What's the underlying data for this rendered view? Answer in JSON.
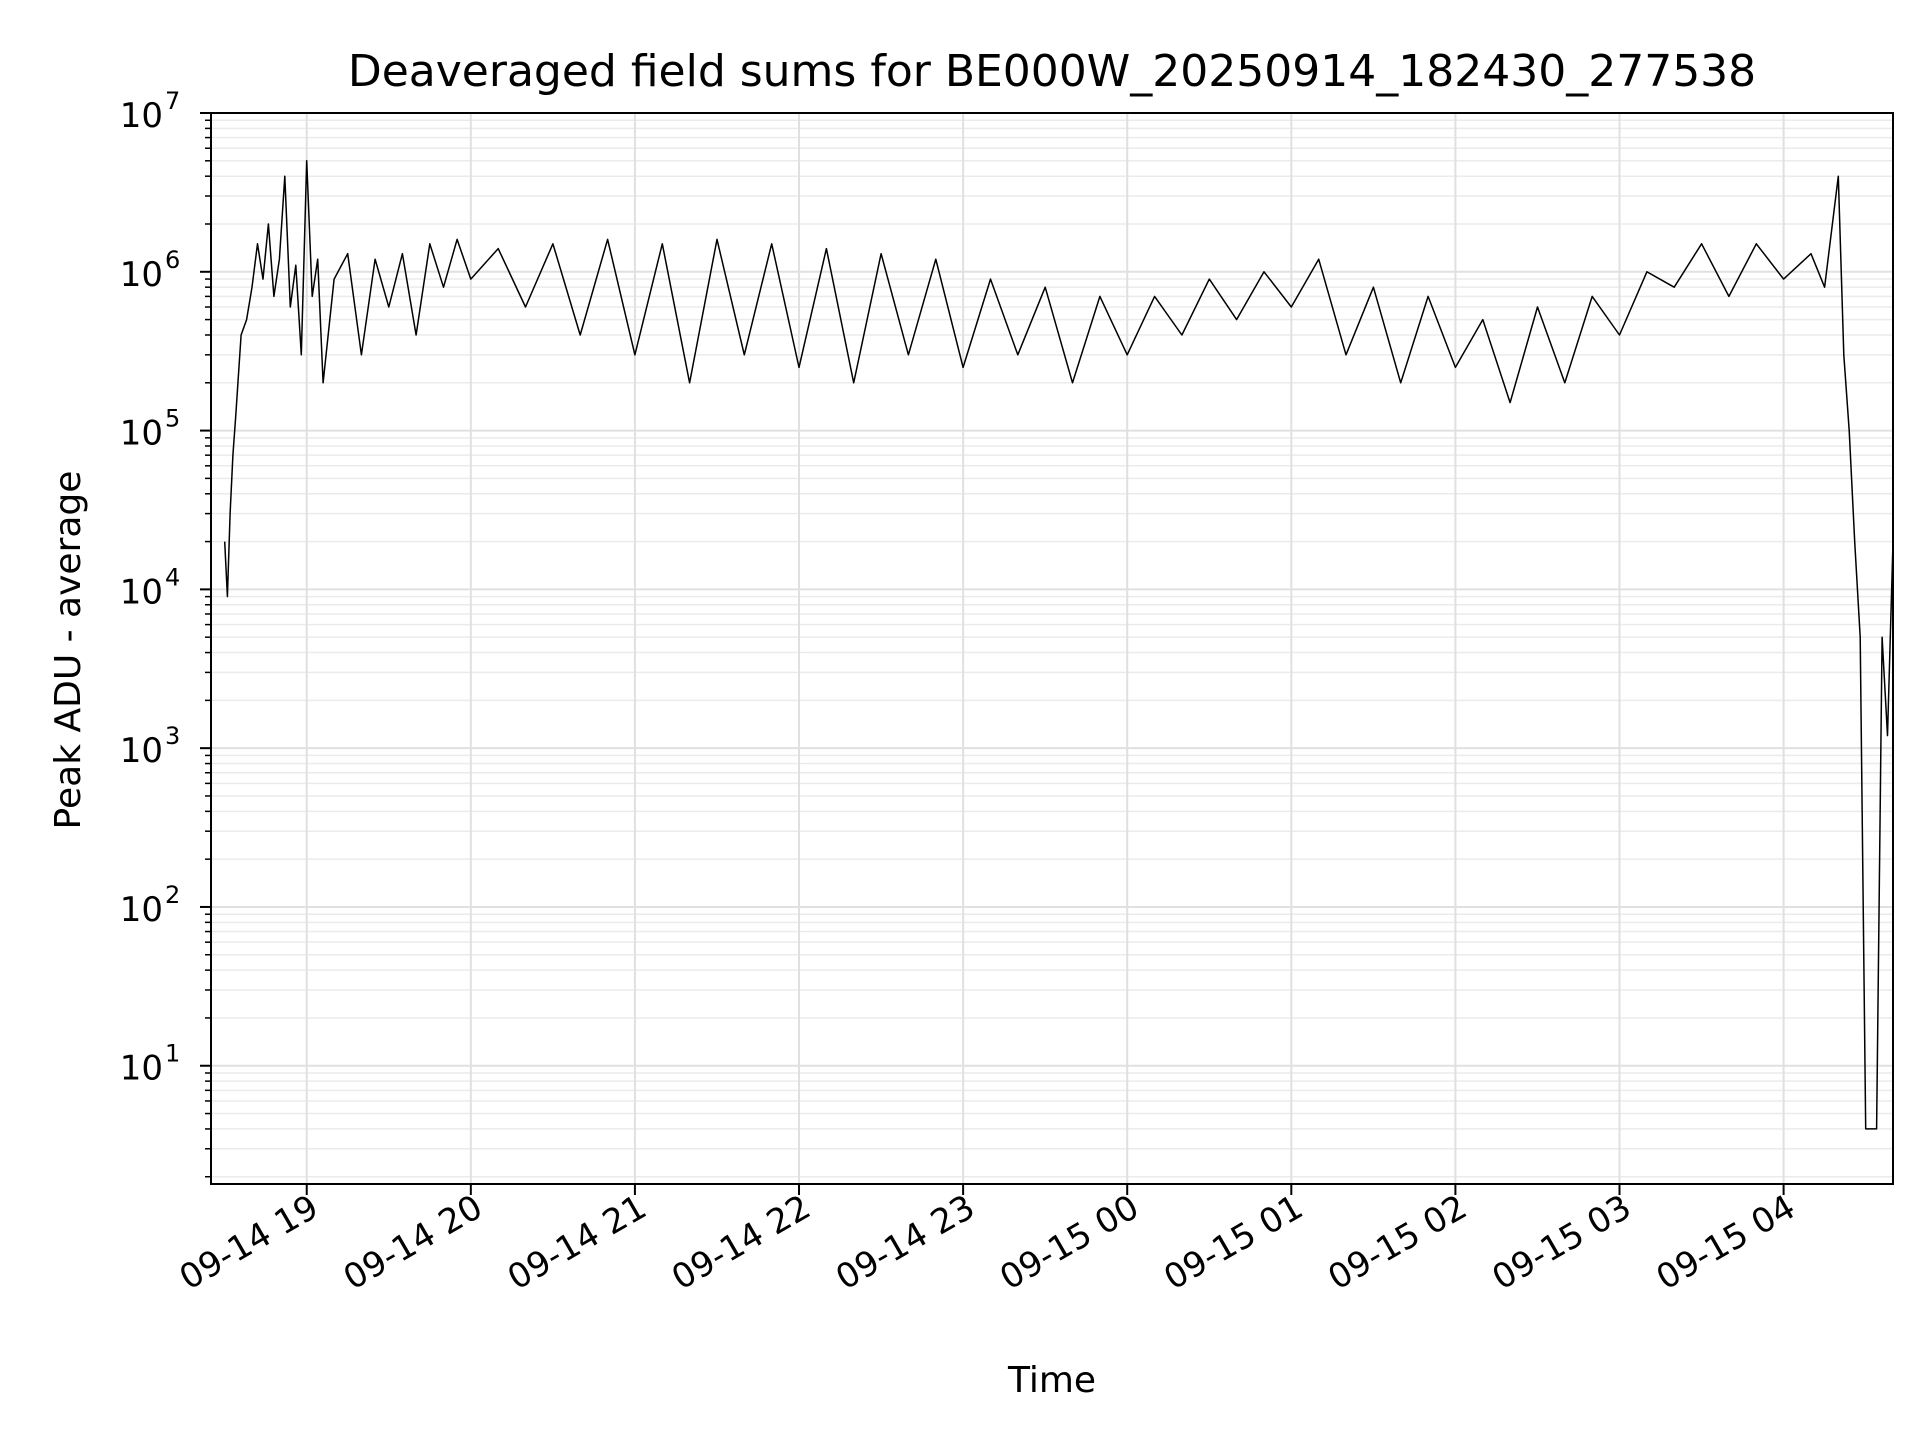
{
  "chart_data": {
    "type": "line",
    "title": "Deaveraged field sums for BE000W_20250914_182430_277538",
    "xlabel": "Time",
    "ylabel": "Peak ADU - average",
    "yscale": "log",
    "ylim": [
      1.8,
      10000000
    ],
    "xlim": [
      "09-14 18:25",
      "09-15 04:40"
    ],
    "grid": true,
    "line_color": "#000000",
    "x_ticks": [
      "09-14 19",
      "09-14 20",
      "09-14 21",
      "09-14 22",
      "09-14 23",
      "09-15 00",
      "09-15 01",
      "09-15 02",
      "09-15 03",
      "09-15 04"
    ],
    "y_ticks": [
      {
        "base": "10",
        "exp": "1",
        "value": 10
      },
      {
        "base": "10",
        "exp": "2",
        "value": 100
      },
      {
        "base": "10",
        "exp": "3",
        "value": 1000
      },
      {
        "base": "10",
        "exp": "4",
        "value": 10000
      },
      {
        "base": "10",
        "exp": "5",
        "value": 100000
      },
      {
        "base": "10",
        "exp": "6",
        "value": 1000000
      },
      {
        "base": "10",
        "exp": "7",
        "value": 10000000
      }
    ],
    "series": [
      {
        "x": [
          "09-14 18:30",
          "09-14 18:31",
          "09-14 18:32",
          "09-14 18:33",
          "09-14 18:34",
          "09-14 18:36",
          "09-14 18:38",
          "09-14 18:40",
          "09-14 18:42",
          "09-14 18:44",
          "09-14 18:46",
          "09-14 18:48",
          "09-14 18:50",
          "09-14 18:52",
          "09-14 18:54",
          "09-14 18:56",
          "09-14 18:58",
          "09-14 19:00",
          "09-14 19:02",
          "09-14 19:04",
          "09-14 19:06",
          "09-14 19:10",
          "09-14 19:15",
          "09-14 19:20",
          "09-14 19:25",
          "09-14 19:30",
          "09-14 19:35",
          "09-14 19:40",
          "09-14 19:45",
          "09-14 19:50",
          "09-14 19:55",
          "09-14 20:00",
          "09-14 20:10",
          "09-14 20:20",
          "09-14 20:30",
          "09-14 20:40",
          "09-14 20:50",
          "09-14 21:00",
          "09-14 21:10",
          "09-14 21:20",
          "09-14 21:30",
          "09-14 21:40",
          "09-14 21:50",
          "09-14 22:00",
          "09-14 22:10",
          "09-14 22:20",
          "09-14 22:30",
          "09-14 22:40",
          "09-14 22:50",
          "09-14 23:00",
          "09-14 23:10",
          "09-14 23:20",
          "09-14 23:30",
          "09-14 23:40",
          "09-14 23:50",
          "09-15 00:00",
          "09-15 00:10",
          "09-15 00:20",
          "09-15 00:30",
          "09-15 00:40",
          "09-15 00:50",
          "09-15 01:00",
          "09-15 01:10",
          "09-15 01:20",
          "09-15 01:30",
          "09-15 01:40",
          "09-15 01:50",
          "09-15 02:00",
          "09-15 02:10",
          "09-15 02:20",
          "09-15 02:30",
          "09-15 02:40",
          "09-15 02:50",
          "09-15 03:00",
          "09-15 03:10",
          "09-15 03:20",
          "09-15 03:30",
          "09-15 03:40",
          "09-15 03:50",
          "09-15 04:00",
          "09-15 04:10",
          "09-15 04:15",
          "09-15 04:20",
          "09-15 04:22",
          "09-15 04:24",
          "09-15 04:26",
          "09-15 04:28",
          "09-15 04:30",
          "09-15 04:32",
          "09-15 04:34",
          "09-15 04:36",
          "09-15 04:38",
          "09-15 04:40"
        ],
        "y": [
          20000,
          9000,
          30000,
          70000,
          120000,
          400000,
          500000,
          800000,
          1500000,
          900000,
          2000000,
          700000,
          1200000,
          4000000,
          600000,
          1100000,
          300000,
          5000000,
          700000,
          1200000,
          200000,
          900000,
          1300000,
          300000,
          1200000,
          600000,
          1300000,
          400000,
          1500000,
          800000,
          1600000,
          900000,
          1400000,
          600000,
          1500000,
          400000,
          1600000,
          300000,
          1500000,
          200000,
          1600000,
          300000,
          1500000,
          250000,
          1400000,
          200000,
          1300000,
          300000,
          1200000,
          250000,
          900000,
          300000,
          800000,
          200000,
          700000,
          300000,
          700000,
          400000,
          900000,
          500000,
          1000000,
          600000,
          1200000,
          300000,
          800000,
          200000,
          700000,
          250000,
          500000,
          150000,
          600000,
          200000,
          700000,
          400000,
          1000000,
          800000,
          1500000,
          700000,
          1500000,
          900000,
          1300000,
          800000,
          4000000,
          300000,
          100000,
          20000,
          5000,
          4,
          4,
          4,
          5000,
          1200,
          20000
        ]
      }
    ]
  }
}
